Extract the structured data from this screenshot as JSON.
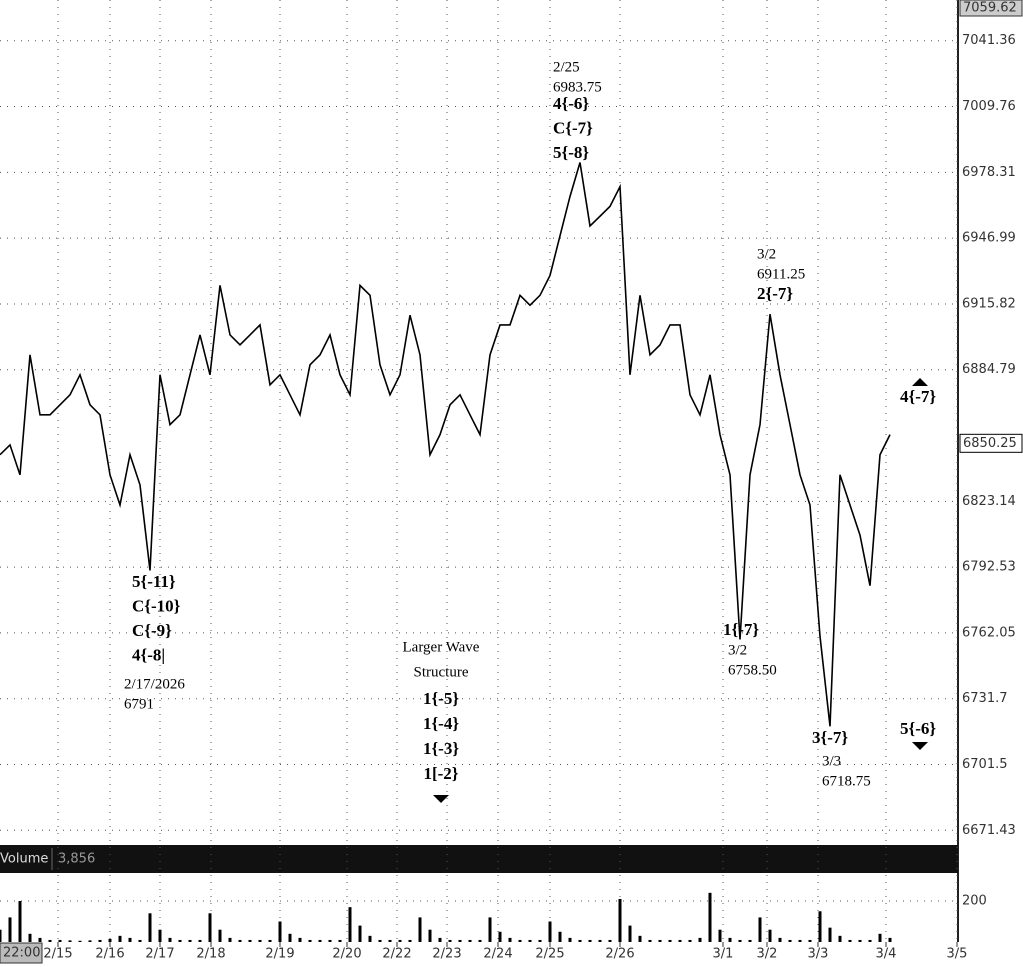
{
  "chart_data": [
    {
      "type": "line",
      "log_scale": true,
      "grid": true,
      "color": "#000000",
      "xlim": [
        0,
        95.8
      ],
      "xticks": [
        {
          "value": 5.8,
          "label": "2/15"
        },
        {
          "value": 11,
          "label": "2/16"
        },
        {
          "value": 16,
          "label": "2/17"
        },
        {
          "value": 21.1,
          "label": "2/18"
        },
        {
          "value": 28,
          "label": "2/19"
        },
        {
          "value": 34.7,
          "label": "2/20"
        },
        {
          "value": 39.7,
          "label": "2/22"
        },
        {
          "value": 44.7,
          "label": "2/23"
        },
        {
          "value": 49.8,
          "label": "2/24"
        },
        {
          "value": 55,
          "label": "2/25"
        },
        {
          "value": 62,
          "label": "2/26"
        },
        {
          "value": 72.3,
          "label": "3/1"
        },
        {
          "value": 76.7,
          "label": "3/2"
        },
        {
          "value": 81.8,
          "label": "3/3"
        },
        {
          "value": 88.6,
          "label": "3/4"
        },
        {
          "value": 95.7,
          "label": "3/5"
        }
      ],
      "ylim": [
        6667,
        7061
      ],
      "yticks": [
        6671.43,
        6701.5,
        6731.7,
        6762.05,
        6792.53,
        6823.14,
        6884.79,
        6915.82,
        6946.99,
        6978.31,
        7009.76,
        7041.36
      ],
      "time_label": "22:00",
      "marker_price": 7059.62,
      "last_price": 6850.25,
      "values": [
        6844.9,
        6849.5,
        6835.5,
        6891.8,
        6863.6,
        6863.6,
        6868.3,
        6873.0,
        6882.4,
        6868.3,
        6863.6,
        6835.5,
        6821.4,
        6844.9,
        6830.8,
        6791,
        6882.4,
        6859.0,
        6863.6,
        6882.4,
        6901.2,
        6882.4,
        6924.6,
        6901.2,
        6896.5,
        6901.2,
        6905.9,
        6877.7,
        6882.4,
        6873.0,
        6863.6,
        6887.1,
        6891.8,
        6901.2,
        6882.4,
        6873.0,
        6924.6,
        6919.9,
        6887.1,
        6873.0,
        6882.4,
        6910.5,
        6891.8,
        6844.9,
        6854.3,
        6868.3,
        6873.0,
        6863.6,
        6854.3,
        6891.8,
        6905.9,
        6905.9,
        6919.9,
        6915.2,
        6919.9,
        6929.3,
        6948.1,
        6966.8,
        6983,
        6952.8,
        6957.4,
        6962.1,
        6971.5,
        6882.4,
        6919.9,
        6891.8,
        6896.5,
        6905.9,
        6905.9,
        6873.0,
        6863.6,
        6882.4,
        6854.3,
        6835.5,
        6759,
        6835.5,
        6859.0,
        6911,
        6882.4,
        6859.0,
        6835.5,
        6821.4,
        6760.5,
        6719,
        6835.5,
        6821.4,
        6807.4,
        6783.9,
        6844.9,
        6854.3
      ],
      "annotations": [
        {
          "wave_labels": [
            "5{-11}",
            "C{-10}",
            "C{-9}",
            "4{-8|"
          ],
          "notes": [
            "2/17/2026",
            "6791"
          ]
        },
        {
          "notes": [
            "2/25",
            "6983.75"
          ],
          "wave_labels": [
            "4{-6}",
            "C{-7}",
            "5{-8}"
          ]
        },
        {
          "notes": [
            "3/2",
            "6911.25"
          ],
          "wave_labels": [
            "2{-7}"
          ]
        },
        {
          "wave_labels": [
            "1{-7}"
          ],
          "notes": [
            "3/2",
            "6758.50"
          ]
        },
        {
          "wave_labels": [
            "3{-7}"
          ],
          "notes": [
            "3/3",
            "6718.75"
          ]
        },
        {
          "notes": [
            "Larger Wave",
            "Structure"
          ],
          "wave_labels": [
            "1{-5}",
            "1{-4}",
            "1{-3}",
            "1[-2}"
          ]
        },
        {
          "wave_labels": [
            "4{-7}"
          ]
        },
        {
          "wave_labels": [
            "5{-6}"
          ]
        }
      ]
    },
    {
      "type": "bar",
      "title": "Volume",
      "color": "#000000",
      "current_value": 3856,
      "current_value_label": "3,856",
      "ylim": [
        0,
        327
      ],
      "yticks": [
        200
      ],
      "values": [
        60,
        120,
        200,
        40,
        20,
        10,
        10,
        8,
        6,
        8,
        10,
        15,
        30,
        20,
        10,
        140,
        60,
        20,
        10,
        10,
        10,
        140,
        60,
        20,
        10,
        10,
        10,
        10,
        100,
        40,
        20,
        10,
        10,
        10,
        10,
        170,
        80,
        30,
        10,
        10,
        10,
        10,
        120,
        60,
        20,
        10,
        10,
        10,
        10,
        120,
        50,
        20,
        10,
        10,
        10,
        100,
        50,
        20,
        10,
        10,
        10,
        10,
        210,
        80,
        30,
        10,
        10,
        10,
        10,
        10,
        20,
        240,
        60,
        20,
        10,
        10,
        120,
        60,
        20,
        10,
        10,
        10,
        150,
        70,
        30,
        10,
        10,
        10,
        40,
        20
      ]
    }
  ]
}
